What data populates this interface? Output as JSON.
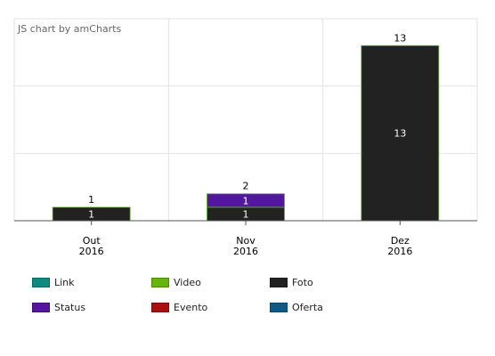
{
  "credit": "JS chart by amCharts",
  "chart_data": {
    "type": "bar",
    "stacked": true,
    "categories": [
      [
        "Out",
        "2016"
      ],
      [
        "Nov",
        "2016"
      ],
      [
        "Dez",
        "2016"
      ]
    ],
    "series": [
      {
        "name": "Link",
        "color": "#0d8b80",
        "values": [
          0,
          0,
          0
        ]
      },
      {
        "name": "Video",
        "color": "#67b40a",
        "values": [
          0,
          0,
          0
        ]
      },
      {
        "name": "Foto",
        "color": "#222222",
        "values": [
          1,
          1,
          13
        ]
      },
      {
        "name": "Status",
        "color": "#54169f",
        "values": [
          0,
          1,
          0
        ]
      },
      {
        "name": "Evento",
        "color": "#aa1212",
        "values": [
          0,
          0,
          0
        ]
      },
      {
        "name": "Oferta",
        "color": "#0f5b87",
        "values": [
          0,
          0,
          0
        ]
      }
    ],
    "totals": [
      1,
      2,
      13
    ],
    "ylim": [
      0,
      15
    ],
    "grid": true,
    "legend_position": "bottom"
  }
}
